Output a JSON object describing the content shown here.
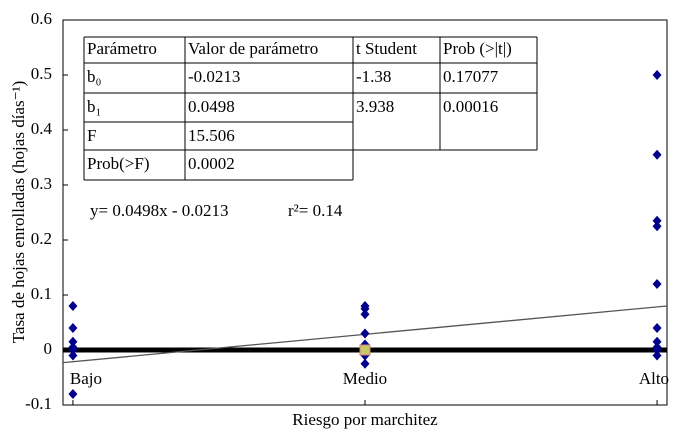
{
  "chart_data": {
    "type": "scatter",
    "y_label": "Tasa de hojas enrolladas (hojas días⁻¹)",
    "x_label": "Riesgo por marchitez",
    "xlim": [
      -0.034,
      2.034
    ],
    "xticks": [
      {
        "value": 0,
        "label": "Bajo"
      },
      {
        "value": 1,
        "label": "Medio"
      },
      {
        "value": 2,
        "label": "Alto"
      }
    ],
    "ylim": [
      -0.1,
      0.6
    ],
    "yticks": [
      0.6,
      0.5,
      0.4,
      0.3,
      0.2,
      0.1,
      0,
      -0.1
    ],
    "zero_line": true,
    "series": [
      {
        "color": "#00008b",
        "marker": "diamond",
        "x": [
          0,
          0,
          0,
          0,
          0,
          0,
          0,
          1,
          1,
          1,
          1,
          1,
          1,
          1,
          1,
          2,
          2,
          2,
          2,
          2,
          2,
          2,
          2,
          2,
          2
        ],
        "values": [
          0.08,
          0.04,
          0.015,
          0.005,
          0,
          -0.01,
          -0.08,
          0.08,
          0.075,
          0.065,
          0.03,
          0.01,
          0,
          -0.01,
          -0.025,
          0.5,
          0.355,
          0.235,
          0.225,
          0.12,
          0.04,
          0.015,
          0.005,
          0,
          -0.01
        ]
      },
      {
        "color": "#c8c864",
        "marker": "square",
        "x": [
          1
        ],
        "values": [
          0
        ]
      }
    ],
    "fit": {
      "color": "#555555",
      "x": [
        -0.034,
        2.034
      ],
      "values": [
        -0.023,
        0.08
      ]
    },
    "equation": "y= 0.0498x - 0.0213",
    "r2": "r²= 0.14",
    "table": {
      "header": [
        "Parámetro",
        "Valor de parámetro",
        "t Student",
        "Prob (>|t|)"
      ],
      "rows": [
        [
          "b₀",
          "-0.0213",
          "-1.38",
          "0.17077"
        ],
        [
          "b₁",
          "0.0498",
          "3.938",
          "0.00016"
        ],
        [
          "F",
          "15.506"
        ],
        [
          "Prob(>F)",
          "0.0002"
        ]
      ]
    }
  }
}
